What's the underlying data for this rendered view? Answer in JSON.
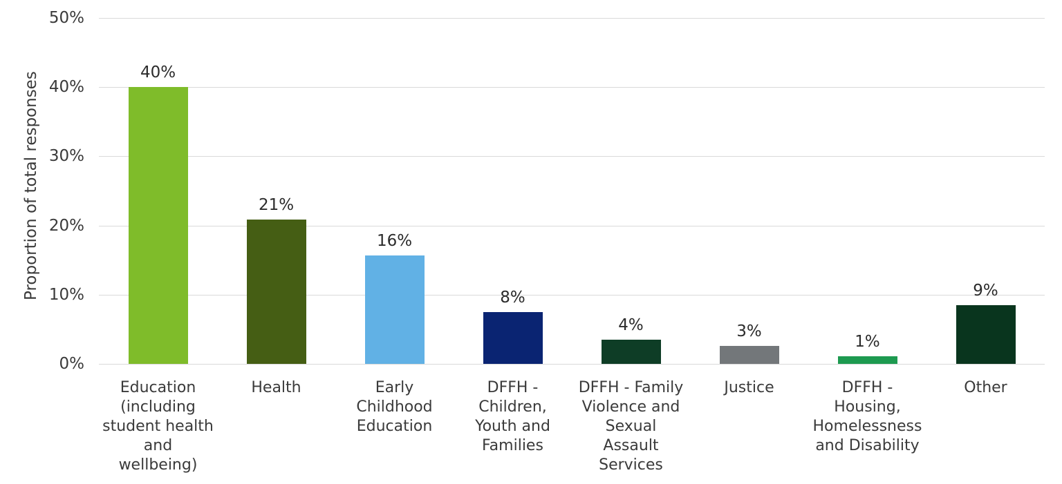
{
  "chart_data": {
    "type": "bar",
    "title": "",
    "xlabel": "",
    "ylabel": "Proportion of total responses",
    "categories": [
      "Education (including student health and wellbeing)",
      "Health",
      "Early Childhood Education",
      "DFFH - Children, Youth and Families",
      "DFFH - Family Violence and Sexual Assault Services",
      "Justice",
      "DFFH - Housing, Homelessness and Disability",
      "Other"
    ],
    "category_display_lines": [
      "Education\n(including\nstudent health\nand\nwellbeing)",
      "Health",
      "Early\nChildhood\nEducation",
      "DFFH -\nChildren,\nYouth and\nFamilies",
      "DFFH - Family\nViolence and\nSexual\nAssault\nServices",
      "Justice",
      "DFFH -\nHousing,\nHomelessness\nand Disability",
      "Other"
    ],
    "values": [
      40,
      21,
      16,
      8,
      4,
      3,
      1,
      9
    ],
    "value_labels": [
      "40%",
      "21%",
      "16%",
      "8%",
      "4%",
      "3%",
      "1%",
      "9%"
    ],
    "bar_colors": [
      "#7fbc2a",
      "#455e14",
      "#61b1e5",
      "#0a2472",
      "#0e3d26",
      "#73777a",
      "#1d9a50",
      "#09351e"
    ],
    "render_heights_pct": [
      40,
      20.9,
      15.7,
      7.5,
      3.5,
      2.6,
      1.1,
      8.5
    ],
    "ylim": [
      0,
      50
    ],
    "yticks": [
      {
        "label": "0%",
        "value": 0
      },
      {
        "label": "10%",
        "value": 10
      },
      {
        "label": "20%",
        "value": 20
      },
      {
        "label": "30%",
        "value": 30
      },
      {
        "label": "40%",
        "value": 40
      },
      {
        "label": "50%",
        "value": 50
      }
    ],
    "grid": true,
    "legend": false,
    "colors": {
      "gridline": "#d9d9d9",
      "axis_text": "#3a3a3a",
      "value_label_text": "#2b2b2b",
      "background": "#ffffff"
    }
  }
}
